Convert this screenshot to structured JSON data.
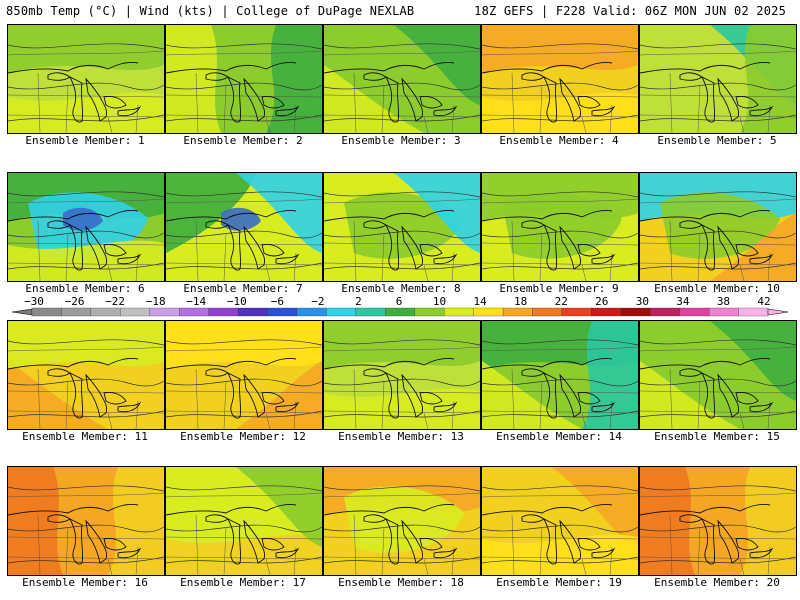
{
  "header": {
    "left": "850mb Temp (°C) | Wind (kts) | College of DuPage NEXLAB",
    "right": "18Z GEFS | F228 Valid: 06Z MON JUN 02 2025"
  },
  "panels": [
    {
      "label": "Ensemble Member: 1",
      "base": "#bfe03a",
      "fields": [
        {
          "color": "#8ccc2c",
          "region": "north"
        },
        {
          "color": "#d8ec20",
          "region": "south"
        }
      ]
    },
    {
      "label": "Ensemble Member: 2",
      "base": "#8ccc2c",
      "fields": [
        {
          "color": "#3eae3e",
          "region": "east"
        },
        {
          "color": "#d8ec20",
          "region": "west"
        }
      ]
    },
    {
      "label": "Ensemble Member: 3",
      "base": "#8ccc2c",
      "fields": [
        {
          "color": "#3eae3e",
          "region": "northeast"
        },
        {
          "color": "#d8ec20",
          "region": "southwest"
        }
      ]
    },
    {
      "label": "Ensemble Member: 4",
      "base": "#f2d020",
      "fields": [
        {
          "color": "#f5a623",
          "region": "north"
        },
        {
          "color": "#ffe11a",
          "region": "south"
        }
      ]
    },
    {
      "label": "Ensemble Member: 5",
      "base": "#bfe03a",
      "fields": [
        {
          "color": "#2bc8a0",
          "region": "northeast"
        },
        {
          "color": "#8ccc2c",
          "region": "east"
        }
      ]
    },
    {
      "label": "Ensemble Member: 6",
      "base": "#8ccc2c",
      "fields": [
        {
          "color": "#3eae3e",
          "region": "north"
        },
        {
          "color": "#30d2e8",
          "region": "center"
        },
        {
          "color": "#3a6cc8",
          "region": "core"
        },
        {
          "color": "#d8ec20",
          "region": "south"
        }
      ]
    },
    {
      "label": "Ensemble Member: 7",
      "base": "#d8ec20",
      "fields": [
        {
          "color": "#3eae3e",
          "region": "northwest"
        },
        {
          "color": "#30d2e8",
          "region": "northeast"
        },
        {
          "color": "#3a6cc8",
          "region": "core"
        }
      ]
    },
    {
      "label": "Ensemble Member: 8",
      "base": "#d8ec20",
      "fields": [
        {
          "color": "#8ccc2c",
          "region": "center"
        },
        {
          "color": "#30d2e8",
          "region": "northeast"
        }
      ]
    },
    {
      "label": "Ensemble Member: 9",
      "base": "#d8ec20",
      "fields": [
        {
          "color": "#8ccc2c",
          "region": "north"
        },
        {
          "color": "#8ccc2c",
          "region": "center"
        }
      ]
    },
    {
      "label": "Ensemble Member: 10",
      "base": "#f2d020",
      "fields": [
        {
          "color": "#30d2e8",
          "region": "north"
        },
        {
          "color": "#8ccc2c",
          "region": "center"
        },
        {
          "color": "#f5a623",
          "region": "southeast"
        }
      ]
    },
    {
      "label": "Ensemble Member: 11",
      "base": "#f2d020",
      "fields": [
        {
          "color": "#f5a623",
          "region": "southwest"
        },
        {
          "color": "#d8ec20",
          "region": "north"
        }
      ]
    },
    {
      "label": "Ensemble Member: 12",
      "base": "#f2d020",
      "fields": [
        {
          "color": "#f5a623",
          "region": "southeast"
        },
        {
          "color": "#ffe11a",
          "region": "north"
        }
      ]
    },
    {
      "label": "Ensemble Member: 13",
      "base": "#bfe03a",
      "fields": [
        {
          "color": "#8ccc2c",
          "region": "north"
        },
        {
          "color": "#d8ec20",
          "region": "south"
        }
      ]
    },
    {
      "label": "Ensemble Member: 14",
      "base": "#8ccc2c",
      "fields": [
        {
          "color": "#3eae3e",
          "region": "north"
        },
        {
          "color": "#2bc8a0",
          "region": "east"
        },
        {
          "color": "#d8ec20",
          "region": "southwest"
        }
      ]
    },
    {
      "label": "Ensemble Member: 15",
      "base": "#8ccc2c",
      "fields": [
        {
          "color": "#3eae3e",
          "region": "northeast"
        },
        {
          "color": "#d8ec20",
          "region": "southwest"
        }
      ]
    },
    {
      "label": "Ensemble Member: 16",
      "base": "#f5a623",
      "fields": [
        {
          "color": "#f07820",
          "region": "west"
        },
        {
          "color": "#f2d020",
          "region": "east"
        }
      ]
    },
    {
      "label": "Ensemble Member: 17",
      "base": "#d8ec20",
      "fields": [
        {
          "color": "#f2d020",
          "region": "south"
        },
        {
          "color": "#8ccc2c",
          "region": "northeast"
        }
      ]
    },
    {
      "label": "Ensemble Member: 18",
      "base": "#f2d020",
      "fields": [
        {
          "color": "#f5a623",
          "region": "north"
        },
        {
          "color": "#d8ec20",
          "region": "center"
        }
      ]
    },
    {
      "label": "Ensemble Member: 19",
      "base": "#f2d020",
      "fields": [
        {
          "color": "#f5a623",
          "region": "northeast"
        },
        {
          "color": "#ffe11a",
          "region": "south"
        }
      ]
    },
    {
      "label": "Ensemble Member: 20",
      "base": "#f5a623",
      "fields": [
        {
          "color": "#f07820",
          "region": "west"
        },
        {
          "color": "#f2d020",
          "region": "east"
        }
      ]
    }
  ],
  "color_scale": {
    "labels": [
      "−30",
      "−26",
      "−22",
      "−18",
      "−14",
      "−10",
      "−6",
      "−2",
      "2",
      "6",
      "10",
      "14",
      "18",
      "22",
      "26",
      "30",
      "34",
      "38",
      "42"
    ],
    "colors": [
      "#8a8a8a",
      "#9c9c9c",
      "#aeaeae",
      "#c0c0c0",
      "#c9a0e8",
      "#b070e0",
      "#9040d0",
      "#5030c0",
      "#2850d8",
      "#2b90e8",
      "#30d2e8",
      "#2bc8a0",
      "#3eae3e",
      "#8ccc2c",
      "#d8ec20",
      "#ffe11a",
      "#f5a623",
      "#f07820",
      "#e84020",
      "#d01818",
      "#a00c0c",
      "#c02060",
      "#e040a0",
      "#f080d0",
      "#f8b0e8"
    ]
  }
}
